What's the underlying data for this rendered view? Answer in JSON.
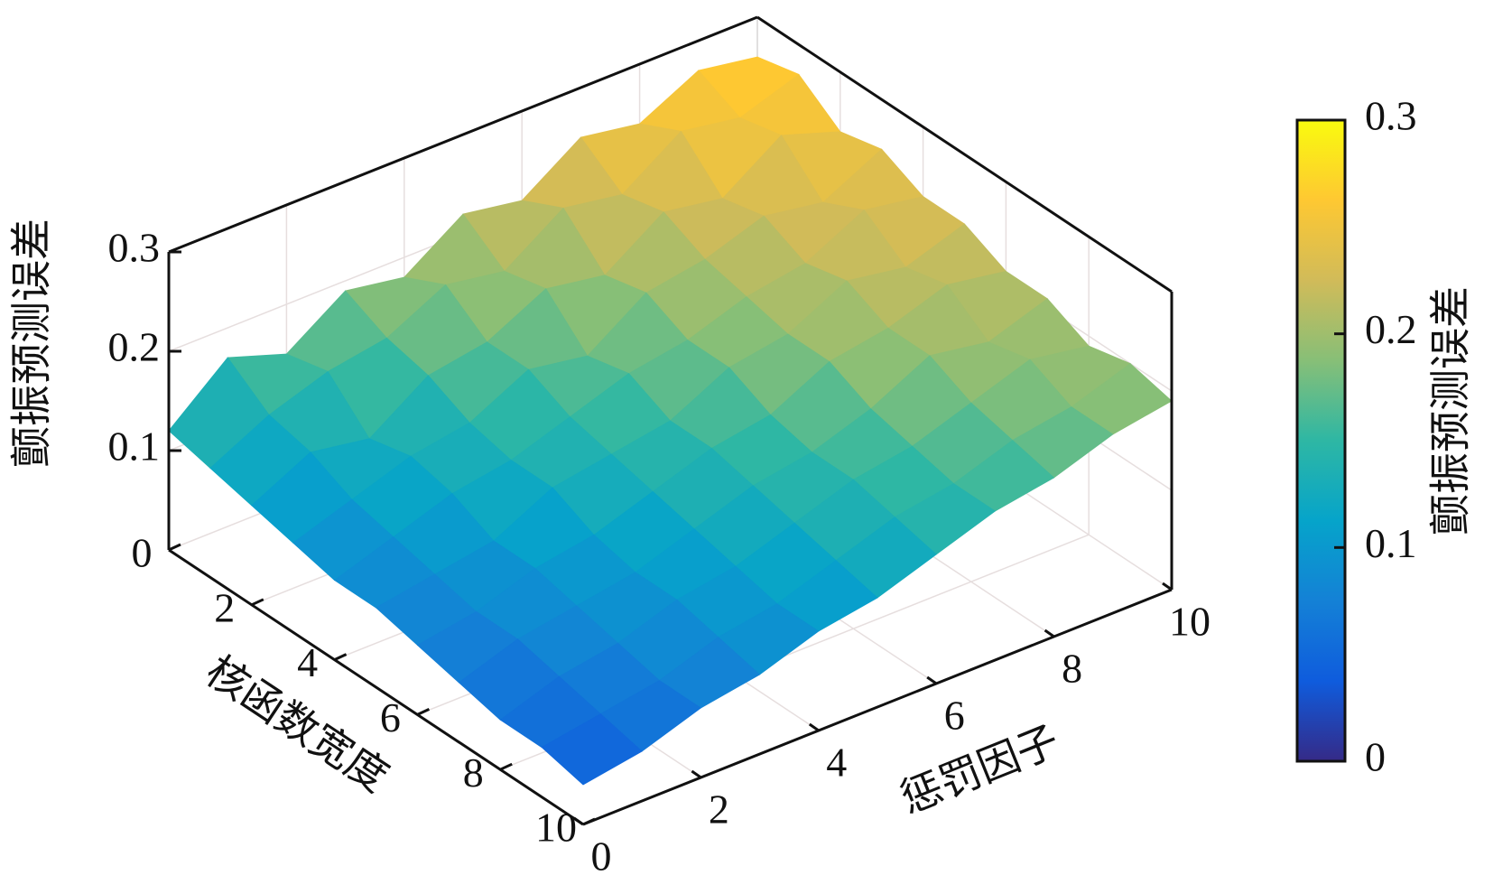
{
  "chart_data": {
    "type": "surface",
    "xlabel": "核函数宽度",
    "ylabel": "惩罚因子",
    "zlabel": "颤振预测误差",
    "x": [
      0,
      1,
      2,
      3,
      4,
      5,
      6,
      7,
      8,
      9,
      10
    ],
    "y": [
      0,
      1,
      2,
      3,
      4,
      5,
      6,
      7,
      8,
      9,
      10
    ],
    "z": [
      [
        0.12,
        0.17,
        0.15,
        0.19,
        0.18,
        0.22,
        0.21,
        0.25,
        0.24,
        0.27,
        0.26
      ],
      [
        0.11,
        0.14,
        0.16,
        0.17,
        0.2,
        0.19,
        0.23,
        0.22,
        0.26,
        0.25,
        0.27
      ],
      [
        0.1,
        0.13,
        0.12,
        0.16,
        0.17,
        0.2,
        0.19,
        0.23,
        0.22,
        0.26,
        0.24
      ],
      [
        0.09,
        0.11,
        0.13,
        0.14,
        0.17,
        0.16,
        0.2,
        0.21,
        0.23,
        0.22,
        0.25
      ],
      [
        0.08,
        0.1,
        0.12,
        0.13,
        0.15,
        0.17,
        0.18,
        0.2,
        0.21,
        0.24,
        0.23
      ],
      [
        0.08,
        0.09,
        0.1,
        0.13,
        0.14,
        0.15,
        0.18,
        0.19,
        0.22,
        0.21,
        0.23
      ],
      [
        0.07,
        0.08,
        0.1,
        0.11,
        0.13,
        0.15,
        0.16,
        0.19,
        0.2,
        0.22,
        0.21
      ],
      [
        0.06,
        0.08,
        0.09,
        0.1,
        0.12,
        0.14,
        0.15,
        0.17,
        0.2,
        0.19,
        0.21
      ],
      [
        0.05,
        0.07,
        0.08,
        0.1,
        0.11,
        0.13,
        0.15,
        0.16,
        0.18,
        0.2,
        0.19
      ],
      [
        0.05,
        0.06,
        0.07,
        0.09,
        0.1,
        0.12,
        0.14,
        0.15,
        0.17,
        0.18,
        0.2
      ],
      [
        0.04,
        0.05,
        0.07,
        0.08,
        0.1,
        0.11,
        0.13,
        0.15,
        0.16,
        0.18,
        0.19
      ]
    ],
    "xlim": [
      0,
      10
    ],
    "xticks": [
      0,
      2,
      4,
      6,
      8,
      10
    ],
    "ylim": [
      0,
      10
    ],
    "yticks": [
      0,
      2,
      4,
      6,
      8,
      10
    ],
    "zlim": [
      0,
      0.3
    ],
    "zticks": [
      0.1,
      0.2,
      0.3
    ],
    "grid": true,
    "colorscale": [
      "#352a87",
      "#0f5cdd",
      "#1481d6",
      "#06a4ca",
      "#2eb7a4",
      "#87bf77",
      "#d1bb59",
      "#fec832",
      "#f9fb0e"
    ],
    "colorbar": {
      "label": "颤振预测误差",
      "lim": [
        0,
        0.3
      ],
      "ticks": [
        0,
        0.1,
        0.2,
        0.3
      ]
    }
  }
}
